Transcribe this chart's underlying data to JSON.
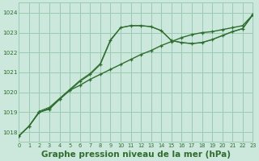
{
  "bg_color": "#cce8dc",
  "grid_color": "#99ccb3",
  "line_color": "#2d6e2d",
  "title": "Graphe pression niveau de la mer (hPa)",
  "title_fontsize": 7.5,
  "xlim": [
    0,
    23
  ],
  "ylim": [
    1017.5,
    1024.5
  ],
  "yticks": [
    1018,
    1019,
    1020,
    1021,
    1022,
    1023,
    1024
  ],
  "xticks": [
    0,
    1,
    2,
    3,
    4,
    5,
    6,
    7,
    8,
    9,
    10,
    11,
    12,
    13,
    14,
    15,
    16,
    17,
    18,
    19,
    20,
    21,
    22,
    23
  ],
  "x": [
    0,
    1,
    2,
    3,
    4,
    5,
    6,
    7,
    8,
    9,
    10,
    11,
    12,
    13,
    14,
    15,
    16,
    17,
    18,
    19,
    20,
    21,
    22,
    23
  ],
  "y_peak": [
    1017.8,
    1018.3,
    1019.0,
    1019.15,
    1019.65,
    1020.1,
    1020.55,
    1020.9,
    1021.4,
    1022.6,
    1023.25,
    1023.35,
    1023.35,
    1023.3,
    1023.1,
    1022.6,
    1022.5,
    1022.45,
    1022.5,
    1022.65,
    1022.85,
    1023.05,
    1023.2,
    1023.9
  ],
  "y_straight": [
    1017.8,
    1018.3,
    1019.0,
    1019.2,
    1019.65,
    1020.1,
    1020.35,
    1020.65,
    1020.9,
    1021.15,
    1021.4,
    1021.65,
    1021.9,
    1022.1,
    1022.35,
    1022.55,
    1022.75,
    1022.9,
    1023.0,
    1023.05,
    1023.15,
    1023.25,
    1023.35,
    1023.9
  ],
  "y_thin": [
    1017.8,
    1018.3,
    1019.05,
    1019.25,
    1019.7,
    1020.15,
    1020.6,
    1020.95,
    1021.45,
    1022.65,
    1023.25,
    1023.35,
    1023.35,
    1023.3,
    1023.1,
    1022.6,
    1022.5,
    1022.45,
    1022.5,
    1022.65,
    1022.85,
    1023.05,
    1023.2,
    1023.9
  ]
}
